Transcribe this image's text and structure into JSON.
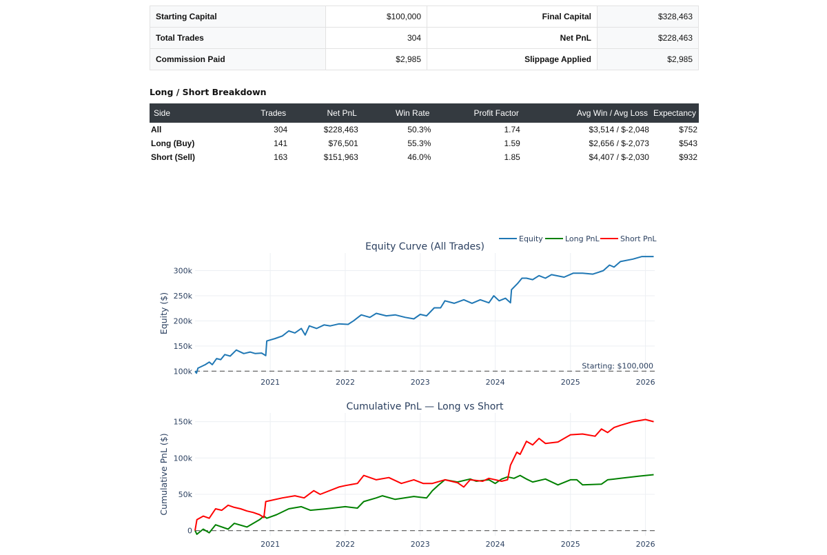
{
  "summary": {
    "rows": [
      {
        "label1": "Starting Capital",
        "value1": "$100,000",
        "label2": "Final Capital",
        "value2": "$328,463"
      },
      {
        "label1": "Total Trades",
        "value1": "304",
        "label2": "Net PnL",
        "value2": "$228,463"
      },
      {
        "label1": "Commission Paid",
        "value1": "$2,985",
        "label2": "Slippage Applied",
        "value2": "$2,985"
      }
    ]
  },
  "breakdown": {
    "heading": "Long / Short Breakdown",
    "columns": [
      "Side",
      "Trades",
      "Net PnL",
      "Win Rate",
      "Profit Factor",
      "Avg Win / Avg Loss",
      "Expectancy"
    ],
    "rows": [
      {
        "side": "All",
        "trades": "304",
        "net_pnl": "$228,463",
        "win_rate": "50.3%",
        "profit_factor": "1.74",
        "avg_win_loss": "$3,514 / $-2,048",
        "expectancy": "$752"
      },
      {
        "side": "Long (Buy)",
        "trades": "141",
        "net_pnl": "$76,501",
        "win_rate": "55.3%",
        "profit_factor": "1.59",
        "avg_win_loss": "$2,656 / $-2,073",
        "expectancy": "$543"
      },
      {
        "side": "Short (Sell)",
        "trades": "163",
        "net_pnl": "$151,963",
        "win_rate": "46.0%",
        "profit_factor": "1.85",
        "avg_win_loss": "$4,407 / $-2,030",
        "expectancy": "$932"
      }
    ]
  },
  "chart_data": [
    {
      "type": "line",
      "title": "Equity Curve (All Trades)",
      "ylabel": "Equity ($)",
      "xlabel": "",
      "ylim": [
        95000,
        335000
      ],
      "xlim": [
        "2020-01-01",
        "2026-02-15"
      ],
      "x_ticks": [
        "2021",
        "2022",
        "2023",
        "2024",
        "2025",
        "2026"
      ],
      "y_ticks": [
        {
          "value": 100000,
          "label": "100k"
        },
        {
          "value": 150000,
          "label": "150k"
        },
        {
          "value": 200000,
          "label": "200k"
        },
        {
          "value": 250000,
          "label": "250k"
        },
        {
          "value": 300000,
          "label": "300k"
        }
      ],
      "grid": true,
      "legend": {
        "position": "top-right",
        "entries": [
          "Equity",
          "Long PnL",
          "Short PnL"
        ]
      },
      "reference_line": {
        "y": 100000,
        "label": "Starting: $100,000"
      },
      "series": [
        {
          "name": "Equity",
          "color": "#1f77b4",
          "points": [
            [
              "2020-01-01",
              100000
            ],
            [
              "2020-01-08",
              96000
            ],
            [
              "2020-01-15",
              106000
            ],
            [
              "2020-02-20",
              113000
            ],
            [
              "2020-03-10",
              118000
            ],
            [
              "2020-03-25",
              113000
            ],
            [
              "2020-04-15",
              125000
            ],
            [
              "2020-05-05",
              123000
            ],
            [
              "2020-05-25",
              133000
            ],
            [
              "2020-06-20",
              130000
            ],
            [
              "2020-07-20",
              142000
            ],
            [
              "2020-08-25",
              135000
            ],
            [
              "2020-09-25",
              138000
            ],
            [
              "2020-10-20",
              135000
            ],
            [
              "2020-11-20",
              136000
            ],
            [
              "2020-12-10",
              131000
            ],
            [
              "2020-12-15",
              160000
            ],
            [
              "2021-01-25",
              165000
            ],
            [
              "2021-03-01",
              170000
            ],
            [
              "2021-04-01",
              180000
            ],
            [
              "2021-05-01",
              176000
            ],
            [
              "2021-06-01",
              185000
            ],
            [
              "2021-06-20",
              172000
            ],
            [
              "2021-07-10",
              190000
            ],
            [
              "2021-08-15",
              185000
            ],
            [
              "2021-09-20",
              192000
            ],
            [
              "2021-10-20",
              190000
            ],
            [
              "2021-12-01",
              194000
            ],
            [
              "2022-01-15",
              193000
            ],
            [
              "2022-02-10",
              200000
            ],
            [
              "2022-03-20",
              212000
            ],
            [
              "2022-05-01",
              207000
            ],
            [
              "2022-06-01",
              215000
            ],
            [
              "2022-07-20",
              210000
            ],
            [
              "2022-09-01",
              212000
            ],
            [
              "2022-10-20",
              207000
            ],
            [
              "2022-12-01",
              204000
            ],
            [
              "2023-01-01",
              213000
            ],
            [
              "2023-02-01",
              210000
            ],
            [
              "2023-03-10",
              226000
            ],
            [
              "2023-04-10",
              226000
            ],
            [
              "2023-05-01",
              240000
            ],
            [
              "2023-06-15",
              235000
            ],
            [
              "2023-08-01",
              242000
            ],
            [
              "2023-09-10",
              235000
            ],
            [
              "2023-10-20",
              242000
            ],
            [
              "2023-12-01",
              236000
            ],
            [
              "2023-12-25",
              250000
            ],
            [
              "2024-01-20",
              240000
            ],
            [
              "2024-02-20",
              245000
            ],
            [
              "2024-03-15",
              236000
            ],
            [
              "2024-03-20",
              262000
            ],
            [
              "2024-04-20",
              275000
            ],
            [
              "2024-05-10",
              285000
            ],
            [
              "2024-06-01",
              285000
            ],
            [
              "2024-07-01",
              282000
            ],
            [
              "2024-08-01",
              290000
            ],
            [
              "2024-09-01",
              285000
            ],
            [
              "2024-10-01",
              292000
            ],
            [
              "2024-12-01",
              287000
            ],
            [
              "2025-01-15",
              295000
            ],
            [
              "2025-03-01",
              295000
            ],
            [
              "2025-04-20",
              293000
            ],
            [
              "2025-05-20",
              297000
            ],
            [
              "2025-06-10",
              300000
            ],
            [
              "2025-07-10",
              311000
            ],
            [
              "2025-08-01",
              307000
            ],
            [
              "2025-09-01",
              318000
            ],
            [
              "2025-11-01",
              323000
            ],
            [
              "2025-12-15",
              328000
            ],
            [
              "2026-02-10",
              328000
            ]
          ]
        }
      ]
    },
    {
      "type": "line",
      "title": "Cumulative PnL — Long vs Short",
      "ylabel": "Cumulative PnL ($)",
      "xlabel": "",
      "ylim": [
        -7000,
        162000
      ],
      "xlim": [
        "2020-01-01",
        "2026-02-15"
      ],
      "x_ticks": [
        "2021",
        "2022",
        "2023",
        "2024",
        "2025",
        "2026"
      ],
      "y_ticks": [
        {
          "value": 0,
          "label": "0"
        },
        {
          "value": 50000,
          "label": "50k"
        },
        {
          "value": 100000,
          "label": "100k"
        },
        {
          "value": 150000,
          "label": "150k"
        }
      ],
      "grid": true,
      "reference_line": {
        "y": 0
      },
      "series": [
        {
          "name": "Long PnL",
          "color": "#008000",
          "points": [
            [
              "2020-01-01",
              0
            ],
            [
              "2020-01-10",
              -5000
            ],
            [
              "2020-02-10",
              2000
            ],
            [
              "2020-03-10",
              -3000
            ],
            [
              "2020-04-10",
              8000
            ],
            [
              "2020-06-10",
              2000
            ],
            [
              "2020-07-10",
              10000
            ],
            [
              "2020-09-10",
              5000
            ],
            [
              "2020-11-10",
              15000
            ],
            [
              "2020-12-01",
              20000
            ],
            [
              "2020-12-15",
              17000
            ],
            [
              "2021-02-01",
              22000
            ],
            [
              "2021-04-01",
              30000
            ],
            [
              "2021-06-01",
              33000
            ],
            [
              "2021-07-15",
              28000
            ],
            [
              "2021-10-01",
              30000
            ],
            [
              "2022-01-01",
              33000
            ],
            [
              "2022-03-01",
              31000
            ],
            [
              "2022-04-01",
              40000
            ],
            [
              "2022-06-01",
              45000
            ],
            [
              "2022-07-01",
              48000
            ],
            [
              "2022-09-01",
              43000
            ],
            [
              "2022-12-01",
              47000
            ],
            [
              "2023-01-01",
              46000
            ],
            [
              "2023-02-01",
              45000
            ],
            [
              "2023-03-01",
              55000
            ],
            [
              "2023-04-01",
              63000
            ],
            [
              "2023-05-01",
              70000
            ],
            [
              "2023-07-01",
              67000
            ],
            [
              "2023-09-01",
              71000
            ],
            [
              "2023-10-01",
              68000
            ],
            [
              "2023-12-01",
              70000
            ],
            [
              "2024-01-01",
              65000
            ],
            [
              "2024-02-01",
              71000
            ],
            [
              "2024-03-01",
              74000
            ],
            [
              "2024-04-01",
              72000
            ],
            [
              "2024-05-01",
              76000
            ],
            [
              "2024-06-01",
              71000
            ],
            [
              "2024-07-01",
              67000
            ],
            [
              "2024-09-01",
              71000
            ],
            [
              "2024-11-01",
              63000
            ],
            [
              "2025-01-01",
              70000
            ],
            [
              "2025-02-01",
              70000
            ],
            [
              "2025-03-01",
              63000
            ],
            [
              "2025-06-01",
              64000
            ],
            [
              "2025-07-01",
              70000
            ],
            [
              "2025-09-01",
              72000
            ],
            [
              "2025-12-01",
              75000
            ],
            [
              "2026-02-10",
              77000
            ]
          ]
        },
        {
          "name": "Short PnL",
          "color": "#ff0000",
          "points": [
            [
              "2020-01-01",
              0
            ],
            [
              "2020-01-10",
              15000
            ],
            [
              "2020-02-10",
              20000
            ],
            [
              "2020-03-10",
              17000
            ],
            [
              "2020-04-10",
              30000
            ],
            [
              "2020-05-10",
              28000
            ],
            [
              "2020-06-10",
              35000
            ],
            [
              "2020-07-10",
              32000
            ],
            [
              "2020-08-10",
              30000
            ],
            [
              "2020-09-10",
              27000
            ],
            [
              "2020-10-10",
              25000
            ],
            [
              "2020-11-10",
              22000
            ],
            [
              "2020-12-01",
              18000
            ],
            [
              "2020-12-10",
              40000
            ],
            [
              "2021-03-01",
              45000
            ],
            [
              "2021-05-01",
              48000
            ],
            [
              "2021-06-15",
              45000
            ],
            [
              "2021-08-01",
              55000
            ],
            [
              "2021-09-01",
              50000
            ],
            [
              "2021-12-01",
              60000
            ],
            [
              "2022-01-01",
              62000
            ],
            [
              "2022-03-01",
              65000
            ],
            [
              "2022-04-01",
              76000
            ],
            [
              "2022-06-01",
              70000
            ],
            [
              "2022-08-01",
              73000
            ],
            [
              "2022-10-01",
              65000
            ],
            [
              "2022-12-01",
              70000
            ],
            [
              "2023-01-15",
              65000
            ],
            [
              "2023-03-01",
              65000
            ],
            [
              "2023-05-01",
              70000
            ],
            [
              "2023-07-01",
              66000
            ],
            [
              "2023-08-01",
              60000
            ],
            [
              "2023-09-01",
              70000
            ],
            [
              "2023-11-01",
              68000
            ],
            [
              "2023-12-01",
              72000
            ],
            [
              "2024-02-01",
              68000
            ],
            [
              "2024-03-01",
              70000
            ],
            [
              "2024-03-15",
              90000
            ],
            [
              "2024-04-15",
              108000
            ],
            [
              "2024-05-01",
              105000
            ],
            [
              "2024-06-01",
              123000
            ],
            [
              "2024-07-01",
              118000
            ],
            [
              "2024-08-01",
              127000
            ],
            [
              "2024-09-01",
              120000
            ],
            [
              "2024-11-01",
              122000
            ],
            [
              "2025-01-01",
              132000
            ],
            [
              "2025-03-01",
              133000
            ],
            [
              "2025-05-01",
              130000
            ],
            [
              "2025-06-01",
              140000
            ],
            [
              "2025-07-01",
              135000
            ],
            [
              "2025-08-01",
              142000
            ],
            [
              "2025-09-01",
              145000
            ],
            [
              "2025-11-01",
              150000
            ],
            [
              "2026-01-01",
              153000
            ],
            [
              "2026-02-10",
              150000
            ]
          ]
        }
      ]
    }
  ]
}
